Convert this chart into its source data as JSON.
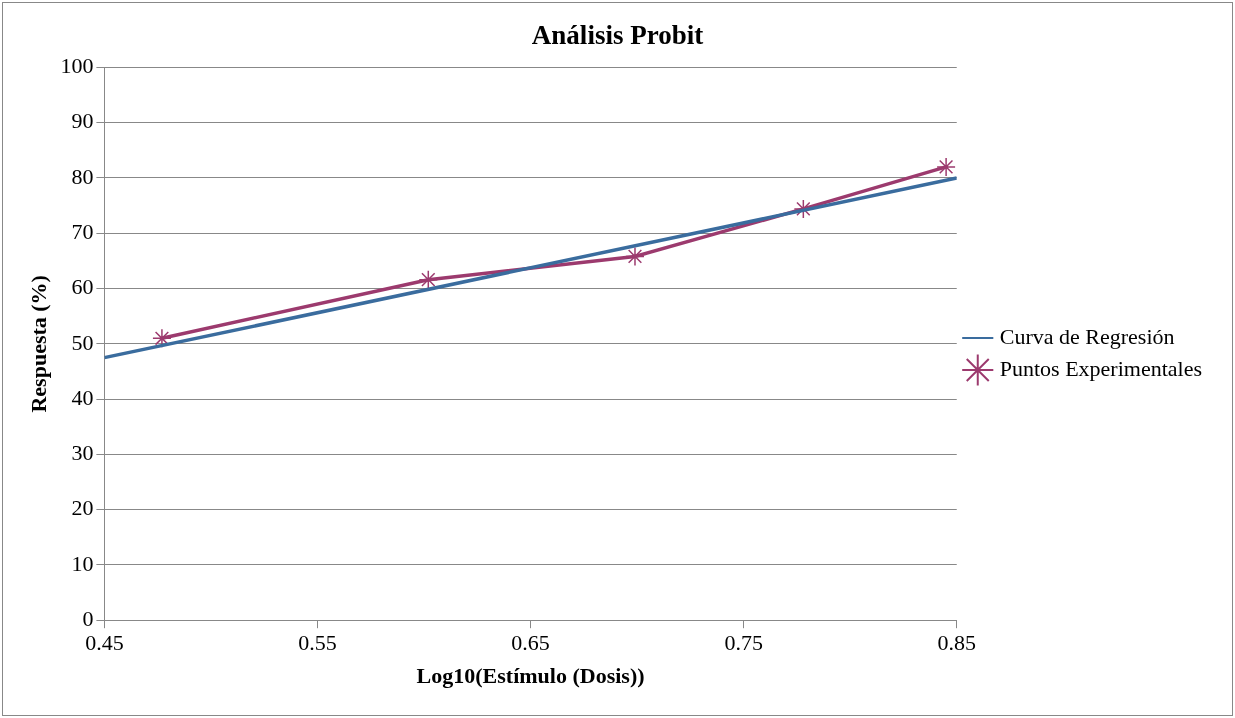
{
  "chart_data": {
    "type": "line",
    "title": "Análisis Probit",
    "xlabel": "Log10(Estímulo (Dosis))",
    "ylabel": "Respuesta (%)",
    "series": [
      {
        "name": "Curva de Regresión",
        "color": "#3a6c9e",
        "x": [
          0.45,
          0.85
        ],
        "values": [
          47.5,
          80
        ],
        "marker": "none"
      },
      {
        "name": "Puntos Experimentales",
        "color": "#9c3a6e",
        "x": [
          0.477,
          0.602,
          0.699,
          0.778,
          0.845
        ],
        "values": [
          51,
          61.6,
          65.8,
          74.4,
          82
        ],
        "marker": "cross"
      }
    ],
    "xlim": [
      0.45,
      0.85
    ],
    "xticks": [
      0.45,
      0.55,
      0.65,
      0.75,
      0.85
    ],
    "ylim": [
      0,
      100
    ],
    "yticks": [
      0,
      10,
      20,
      30,
      40,
      50,
      60,
      70,
      80,
      90,
      100
    ],
    "grid": "y",
    "legend": "right",
    "line_style": "solid"
  }
}
